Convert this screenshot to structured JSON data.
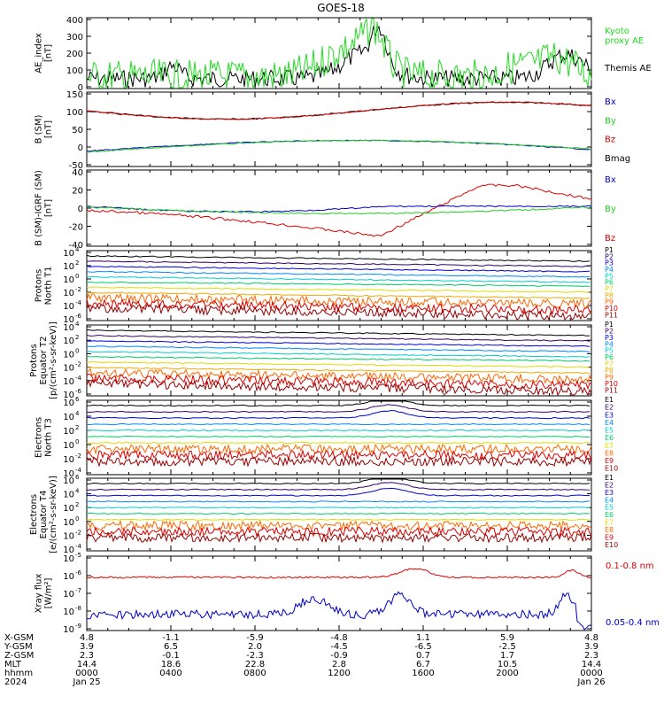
{
  "title": "GOES-18",
  "panels": [
    {
      "id": "ae",
      "ylabel_lines": [
        "AE_index",
        "[nT]"
      ],
      "yticks": [
        "400",
        "300",
        "200",
        "100",
        "0"
      ],
      "legend": [
        {
          "text": "Kyoto",
          "color": "#22dd22"
        },
        {
          "text": "proxy AE",
          "color": "#22dd22"
        },
        {
          "text": "Themis AE",
          "color": "#000000"
        }
      ]
    },
    {
      "id": "bsm",
      "ylabel_lines": [
        "B (SM)",
        "[nT]"
      ],
      "yticks": [
        "150",
        "100",
        "50",
        "0",
        "-50"
      ],
      "legend": [
        {
          "text": "Bx",
          "color": "#0000cc"
        },
        {
          "text": "By",
          "color": "#22cc22"
        },
        {
          "text": "Bz",
          "color": "#dd0000"
        },
        {
          "text": "Bmag",
          "color": "#000000"
        }
      ]
    },
    {
      "id": "bigrf",
      "ylabel_lines": [
        "B (SM)-IGRF (SM)",
        "[nT]"
      ],
      "yticks": [
        "40",
        "20",
        "0",
        "-20",
        "-40"
      ],
      "legend": [
        {
          "text": "Bx",
          "color": "#0000cc"
        },
        {
          "text": "By",
          "color": "#22cc22"
        },
        {
          "text": "Bz",
          "color": "#dd0000"
        }
      ]
    },
    {
      "id": "pt1",
      "ylabel_lines": [
        "Protons",
        "North T1"
      ],
      "yticks": [
        "10",
        "10",
        "10",
        "10",
        "10",
        "10"
      ],
      "yexp": [
        "4",
        "2",
        "0",
        "-2",
        "-4",
        "-6"
      ],
      "legend": [
        {
          "text": "P1",
          "color": "#000000"
        },
        {
          "text": "P2",
          "color": "#330066"
        },
        {
          "text": "P3",
          "color": "#0000dd"
        },
        {
          "text": "P4",
          "color": "#0088ff"
        },
        {
          "text": "P5",
          "color": "#00cccc"
        },
        {
          "text": "P6",
          "color": "#00cc66"
        },
        {
          "text": "P7",
          "color": "#dddd00"
        },
        {
          "text": "P8",
          "color": "#eeaa00"
        },
        {
          "text": "P9",
          "color": "#ff6600"
        },
        {
          "text": "P10",
          "color": "#dd0000"
        },
        {
          "text": "P11",
          "color": "#990000"
        }
      ]
    },
    {
      "id": "pt2",
      "ylabel_lines": [
        "Protons",
        "Equator T2",
        "[p/(cm²-s-sr-keV)]"
      ],
      "yticks": [
        "10",
        "10",
        "10",
        "10",
        "10",
        "10"
      ],
      "yexp": [
        "4",
        "2",
        "0",
        "-2",
        "-4",
        "-6"
      ],
      "legend": [
        {
          "text": "P1",
          "color": "#000000"
        },
        {
          "text": "P2",
          "color": "#330066"
        },
        {
          "text": "P3",
          "color": "#0000dd"
        },
        {
          "text": "P4",
          "color": "#0088ff"
        },
        {
          "text": "P5",
          "color": "#00cccc"
        },
        {
          "text": "P6",
          "color": "#00cc66"
        },
        {
          "text": "P7",
          "color": "#dddd00"
        },
        {
          "text": "P8",
          "color": "#eeaa00"
        },
        {
          "text": "P9",
          "color": "#ff6600"
        },
        {
          "text": "P10",
          "color": "#dd0000"
        },
        {
          "text": "P11",
          "color": "#990000"
        }
      ]
    },
    {
      "id": "et3",
      "ylabel_lines": [
        "Electrons",
        "North T3"
      ],
      "yticks": [
        "10",
        "10",
        "10",
        "10",
        "10",
        "10"
      ],
      "yexp": [
        "6",
        "4",
        "2",
        "0",
        "-2",
        "-4"
      ],
      "legend": [
        {
          "text": "E1",
          "color": "#000000"
        },
        {
          "text": "E2",
          "color": "#330066"
        },
        {
          "text": "E3",
          "color": "#0000dd"
        },
        {
          "text": "E4",
          "color": "#0088ff"
        },
        {
          "text": "E5",
          "color": "#00cccc"
        },
        {
          "text": "E6",
          "color": "#00cc66"
        },
        {
          "text": "E7",
          "color": "#dddd00"
        },
        {
          "text": "E8",
          "color": "#ff6600"
        },
        {
          "text": "E9",
          "color": "#dd0000"
        },
        {
          "text": "E10",
          "color": "#990000"
        }
      ]
    },
    {
      "id": "et4",
      "ylabel_lines": [
        "Electrons",
        "Equator T4",
        "[e/(cm²-s-sr-keV)]"
      ],
      "yticks": [
        "10",
        "10",
        "10",
        "10",
        "10",
        "10"
      ],
      "yexp": [
        "6",
        "4",
        "2",
        "0",
        "-2",
        "-4"
      ],
      "legend": [
        {
          "text": "E1",
          "color": "#000000"
        },
        {
          "text": "E2",
          "color": "#330066"
        },
        {
          "text": "E3",
          "color": "#0000dd"
        },
        {
          "text": "E4",
          "color": "#0088ff"
        },
        {
          "text": "E5",
          "color": "#00cccc"
        },
        {
          "text": "E6",
          "color": "#00cc66"
        },
        {
          "text": "E7",
          "color": "#dddd00"
        },
        {
          "text": "E8",
          "color": "#ff6600"
        },
        {
          "text": "E9",
          "color": "#dd0000"
        },
        {
          "text": "E10",
          "color": "#990000"
        }
      ]
    },
    {
      "id": "xray",
      "ylabel_lines": [
        "Xray flux",
        "[W/m²]"
      ],
      "yticks": [
        "10",
        "10",
        "10",
        "10",
        "10"
      ],
      "yexp": [
        "-5",
        "-6",
        "-7",
        "-8",
        "-9"
      ],
      "legend": [
        {
          "text": "0.1-0.8 nm",
          "color": "#dd0000"
        },
        {
          "text": "0.05-0.4 nm",
          "color": "#0000cc"
        }
      ]
    }
  ],
  "footer": {
    "row_labels": [
      "X-GSM",
      "Y-GSM",
      "Z-GSM",
      "MLT",
      "hhmm",
      "2024"
    ],
    "columns": [
      [
        "4.8",
        "3.9",
        "2.3",
        "14.4",
        "0000",
        "Jan 25"
      ],
      [
        "-1.1",
        "6.5",
        "-0.1",
        "18.6",
        "0400",
        ""
      ],
      [
        "-5.9",
        "2.0",
        "-2.3",
        "22.8",
        "0800",
        ""
      ],
      [
        "-4.8",
        "-4.5",
        "-0.9",
        "2.8",
        "1200",
        ""
      ],
      [
        "1.1",
        "-6.5",
        "0.7",
        "6.7",
        "1600",
        ""
      ],
      [
        "5.9",
        "-2.5",
        "1.7",
        "10.5",
        "2000",
        ""
      ],
      [
        "4.8",
        "3.9",
        "2.3",
        "14.4",
        "0000",
        "Jan 26"
      ]
    ]
  },
  "chart_data": [
    {
      "type": "line",
      "title": "AE_index",
      "ylabel": "AE_index [nT]",
      "ylim": [
        0,
        400
      ],
      "x": [
        "0000",
        "0400",
        "0800",
        "1200",
        "1600",
        "2000",
        "0000"
      ],
      "series": [
        {
          "name": "Kyoto proxy AE",
          "values": [
            30,
            80,
            40,
            90,
            250,
            120,
            260
          ]
        },
        {
          "name": "Themis AE",
          "values": [
            25,
            130,
            55,
            70,
            300,
            110,
            270
          ]
        }
      ]
    },
    {
      "type": "line",
      "title": "B (SM)",
      "ylabel": "B (SM) [nT]",
      "ylim": [
        -60,
        150
      ],
      "x": [
        "0000",
        "0400",
        "0800",
        "1200",
        "1600",
        "2000",
        "0000"
      ],
      "series": [
        {
          "name": "Bx",
          "values": [
            -20,
            -10,
            0,
            5,
            10,
            5,
            -20
          ]
        },
        {
          "name": "By",
          "values": [
            -15,
            -8,
            -2,
            8,
            12,
            10,
            -5
          ]
        },
        {
          "name": "Bz",
          "values": [
            102,
            95,
            85,
            75,
            110,
            125,
            110
          ]
        },
        {
          "name": "Bmag",
          "values": [
            102,
            96,
            86,
            76,
            112,
            126,
            112
          ]
        }
      ]
    },
    {
      "type": "line",
      "title": "B (SM)-IGRF (SM)",
      "ylabel": "B (SM)-IGRF (SM) [nT]",
      "ylim": [
        -45,
        45
      ],
      "x": [
        "0000",
        "0400",
        "0800",
        "1200",
        "1600",
        "2000",
        "0000"
      ],
      "series": [
        {
          "name": "Bx",
          "values": [
            2,
            0,
            -3,
            -2,
            0,
            1,
            2
          ]
        },
        {
          "name": "By",
          "values": [
            0,
            -1,
            -3,
            -5,
            -2,
            0,
            2
          ]
        },
        {
          "name": "Bz",
          "values": [
            0,
            -10,
            -20,
            -30,
            10,
            25,
            10
          ]
        }
      ]
    },
    {
      "type": "line",
      "title": "Protons North T1",
      "ylabel": "Protons North T1",
      "ylim": [
        1e-06,
        10000.0
      ],
      "x": [
        "0000",
        "0400",
        "0800",
        "1200",
        "1600",
        "2000",
        "0000"
      ],
      "series": [
        {
          "name": "P1",
          "values": [
            4000,
            3500,
            3000,
            2500,
            1200,
            800,
            2500
          ]
        },
        {
          "name": "P11",
          "values": [
            1e-05,
            1e-05,
            1e-05,
            1e-05,
            1e-05,
            1e-05,
            1e-05
          ]
        }
      ]
    },
    {
      "type": "line",
      "title": "Protons Equator T2",
      "ylabel": "Protons Equator T2 [p/(cm²-s-sr-keV)]",
      "ylim": [
        1e-06,
        10000.0
      ],
      "x": [
        "0000",
        "0400",
        "0800",
        "1200",
        "1600",
        "2000",
        "0000"
      ],
      "series": [
        {
          "name": "P1",
          "values": [
            3000,
            2800,
            2500,
            2000,
            1500,
            800,
            2000
          ]
        }
      ]
    },
    {
      "type": "line",
      "title": "Electrons North T3",
      "ylabel": "Electrons North T3",
      "ylim": [
        0.0001,
        1000000.0
      ],
      "x": [
        "0000",
        "0400",
        "0800",
        "1200",
        "1600",
        "2000",
        "0000"
      ],
      "series": [
        {
          "name": "E1",
          "values": [
            20000,
            20000,
            20000,
            20000,
            100000,
            50000,
            30000
          ]
        }
      ]
    },
    {
      "type": "line",
      "title": "Electrons Equator T4",
      "ylabel": "Electrons Equator T4 [e/(cm²-s-sr-keV)]",
      "ylim": [
        0.0001,
        1000000.0
      ],
      "x": [
        "0000",
        "0400",
        "0800",
        "1200",
        "1600",
        "2000",
        "0000"
      ],
      "series": [
        {
          "name": "E1",
          "values": [
            20000,
            20000,
            20000,
            20000,
            100000,
            50000,
            30000
          ]
        }
      ]
    },
    {
      "type": "line",
      "title": "Xray flux",
      "ylabel": "Xray flux [W/m²]",
      "ylim": [
        1e-09,
        1e-05
      ],
      "x": [
        "0000",
        "0400",
        "0800",
        "1200",
        "1600",
        "2000",
        "0000"
      ],
      "series": [
        {
          "name": "0.1-0.8 nm",
          "values": [
            1e-06,
            1e-06,
            1.2e-06,
            2e-06,
            3e-06,
            1.5e-06,
            2e-06
          ]
        },
        {
          "name": "0.05-0.4 nm",
          "values": [
            1e-08,
            5e-08,
            2e-08,
            5e-08,
            1e-07,
            3e-08,
            1e-08
          ]
        }
      ]
    }
  ]
}
